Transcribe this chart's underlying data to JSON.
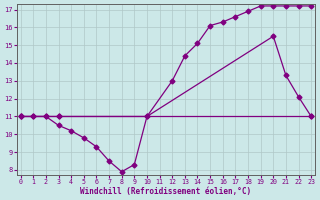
{
  "xlabel": "Windchill (Refroidissement éolien,°C)",
  "bg_color": "#cce8e8",
  "grid_color": "#b0c8c8",
  "line_color": "#800080",
  "x_min": 0,
  "x_max": 23,
  "y_min": 8,
  "y_max": 17,
  "line1_x": [
    0,
    1,
    2,
    3,
    23
  ],
  "line1_y": [
    11,
    11,
    11,
    11,
    11
  ],
  "line2_x": [
    0,
    1,
    2,
    3,
    4,
    5,
    6,
    7,
    8,
    9,
    10,
    20,
    21,
    22,
    23
  ],
  "line2_y": [
    11,
    11,
    11,
    10.5,
    10.2,
    9.8,
    9.3,
    8.5,
    7.9,
    8.3,
    11,
    15.5,
    13.3,
    12.1,
    11
  ],
  "line3_x": [
    0,
    3,
    10,
    12,
    13,
    14,
    15,
    16,
    17,
    18,
    19,
    20,
    21,
    22,
    23
  ],
  "line3_y": [
    11,
    11,
    11,
    13.0,
    14.4,
    15.1,
    16.1,
    16.3,
    16.6,
    16.9,
    17.2,
    17.2,
    17.2,
    17.2,
    17.2
  ],
  "yticks": [
    8,
    9,
    10,
    11,
    12,
    13,
    14,
    15,
    16,
    17
  ],
  "xticks": [
    0,
    1,
    2,
    3,
    4,
    5,
    6,
    7,
    8,
    9,
    10,
    11,
    12,
    13,
    14,
    15,
    16,
    17,
    18,
    19,
    20,
    21,
    22,
    23
  ],
  "marker": "D",
  "markersize": 2.5,
  "linewidth": 0.9
}
